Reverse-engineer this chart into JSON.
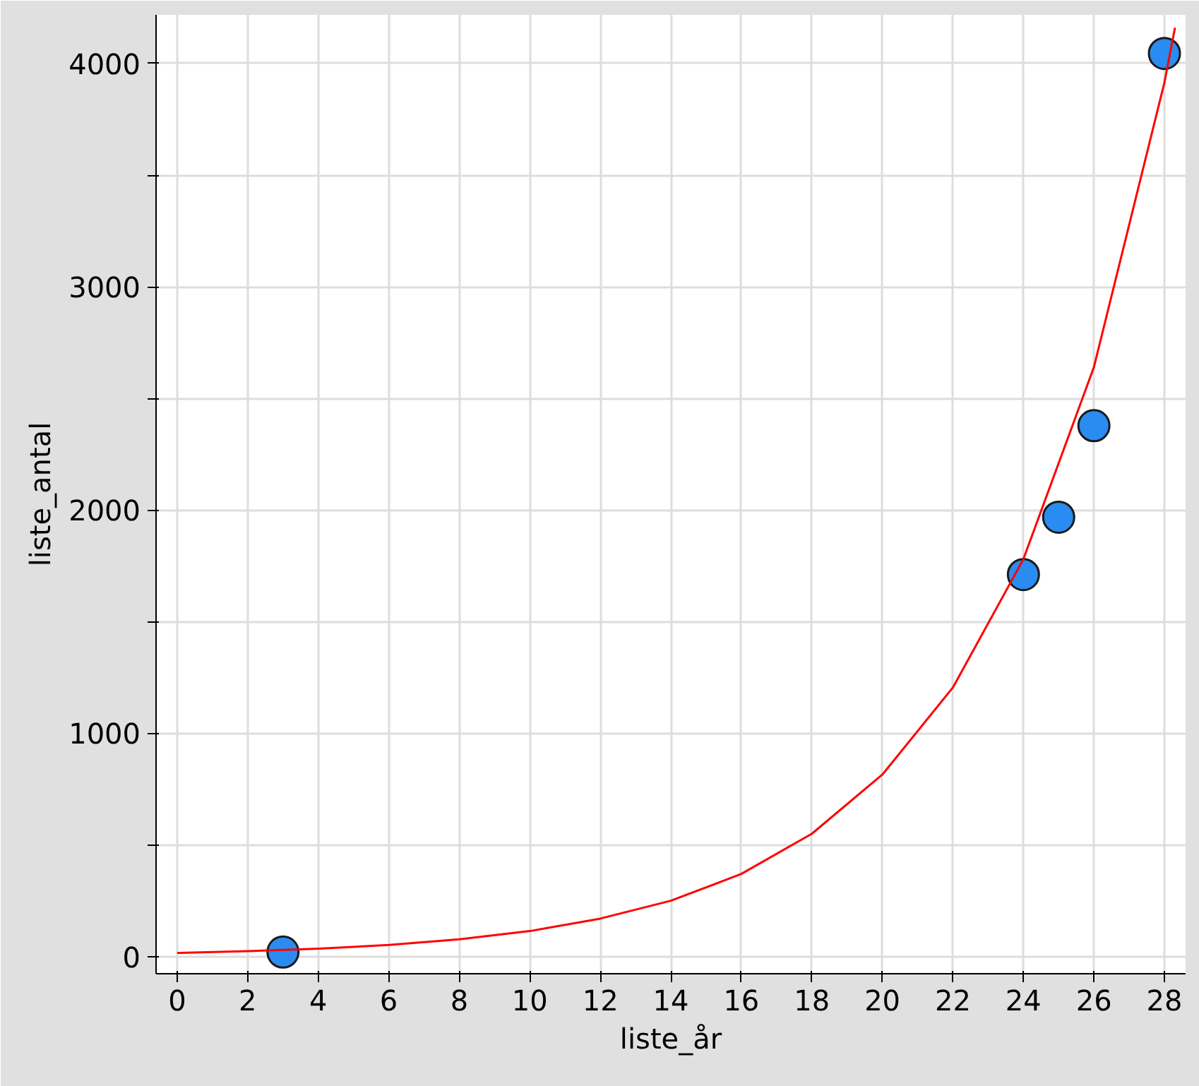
{
  "chart_data": {
    "type": "scatter",
    "xlabel": "liste_år",
    "ylabel": "liste_antal",
    "xlim": [
      -0.6,
      28.6
    ],
    "ylim": [
      -77,
      4218
    ],
    "xticks": [
      0,
      2,
      4,
      6,
      8,
      10,
      12,
      14,
      16,
      18,
      20,
      22,
      24,
      26,
      28
    ],
    "yticks": [
      0,
      {
        "value": 500,
        "label": null
      },
      1000,
      {
        "value": 1500,
        "label": null
      },
      2000,
      {
        "value": 2500,
        "label": null
      },
      3000,
      {
        "value": 3500,
        "label": null
      },
      4000
    ],
    "grid": true,
    "marker": "circle",
    "series": [
      {
        "color": "#2a8cf0",
        "x": [
          3,
          24,
          25,
          26,
          28
        ],
        "values": [
          20,
          1711,
          1968,
          2378,
          4045
        ]
      },
      {
        "type": "line",
        "color": "#ff0000",
        "line_style": "solid",
        "marker": "none",
        "x": [
          0,
          2,
          4,
          6,
          8,
          10,
          12,
          14,
          16,
          18,
          20,
          22,
          24,
          26,
          28,
          28.3
        ],
        "values": [
          16,
          24,
          35,
          52,
          77,
          114,
          170,
          250,
          370,
          550,
          815,
          1205,
          1780,
          2640,
          3915,
          4160
        ]
      }
    ]
  }
}
